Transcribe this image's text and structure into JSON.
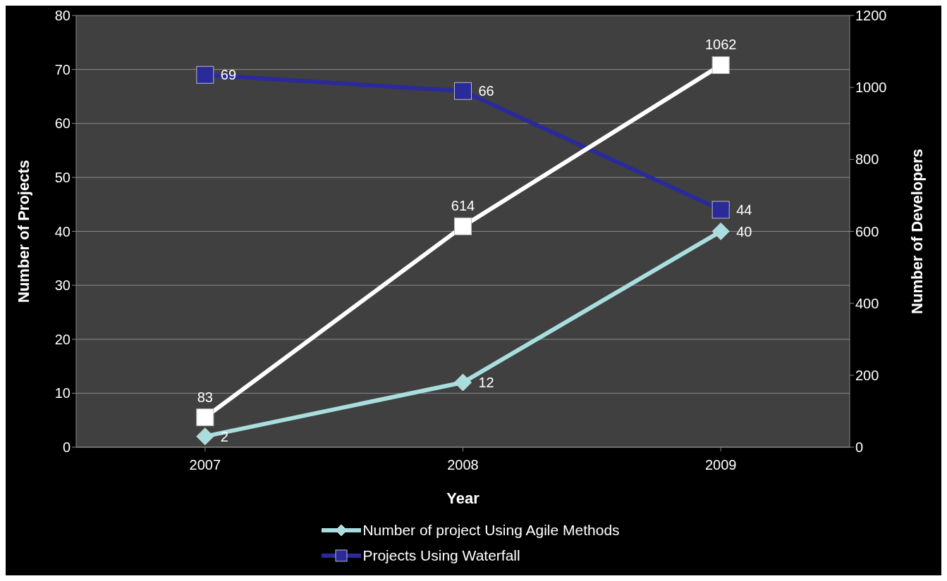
{
  "chart_data": {
    "type": "line",
    "xlabel": "Year",
    "ylabel": "Number of Projects",
    "y2label": "Number of Developers",
    "categories": [
      "2007",
      "2008",
      "2009"
    ],
    "series": [
      {
        "name": "Number of project Using Agile Methods",
        "color": "#a9dede",
        "values": [
          2,
          12,
          40
        ],
        "marker": "diamond"
      },
      {
        "name": "Projects Using Waterfall",
        "color": "#2a2a9a",
        "values": [
          69,
          66,
          44
        ],
        "marker": "square"
      },
      {
        "color": "#ffffff",
        "values": [
          83,
          614,
          1062
        ],
        "marker": "square",
        "axis": "y2"
      }
    ],
    "ylim": [
      0,
      80
    ],
    "yticks": [
      0,
      10,
      20,
      30,
      40,
      50,
      60,
      70,
      80
    ],
    "y2lim": [
      0,
      1200
    ],
    "y2ticks": [
      0,
      200,
      400,
      600,
      800,
      1000,
      1200
    ],
    "grid": "y",
    "legend": "bottom",
    "data_labels": true
  }
}
